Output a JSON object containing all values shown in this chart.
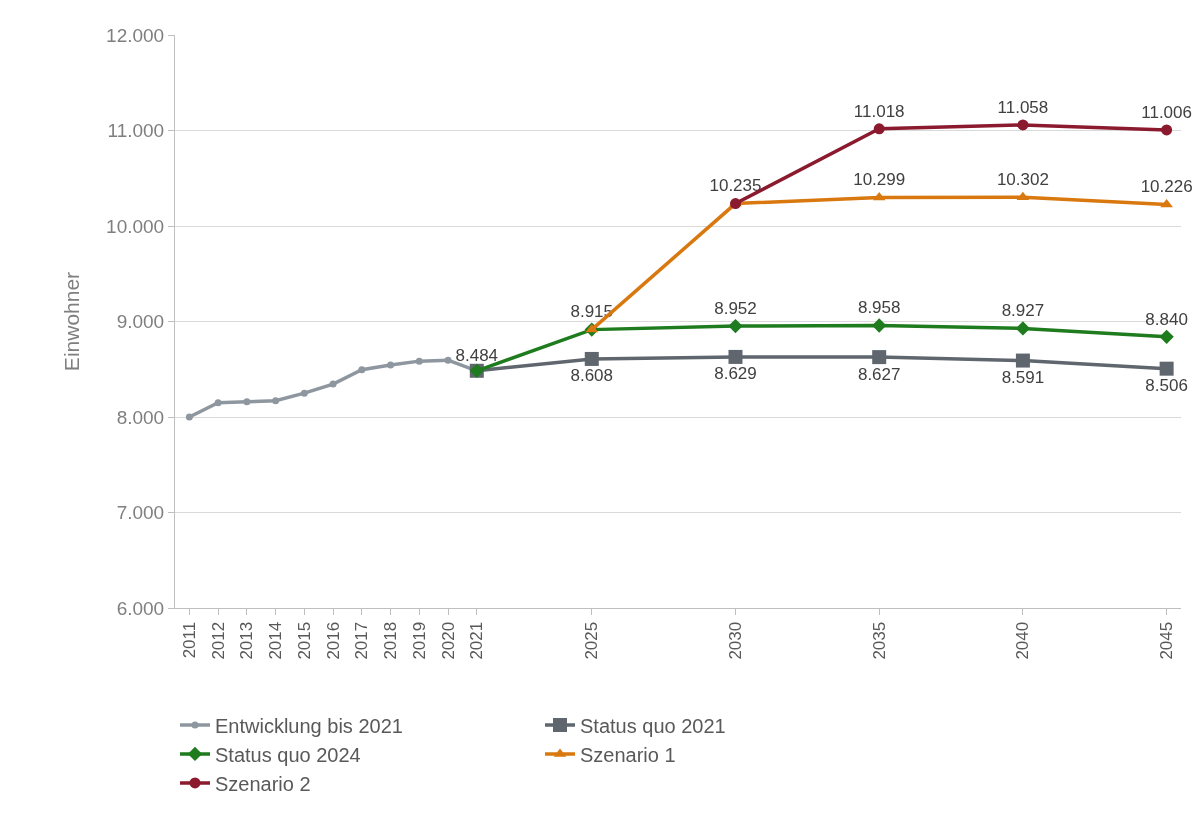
{
  "chart_data": {
    "type": "line",
    "ylabel": "Einwohner",
    "xlim": [
      2010.5,
      2045.5
    ],
    "xticks": [
      2011,
      2012,
      2013,
      2014,
      2015,
      2016,
      2017,
      2018,
      2019,
      2020,
      2021,
      2025,
      2030,
      2035,
      2040,
      2045
    ],
    "ylim": [
      6000,
      12000
    ],
    "yticks": [
      {
        "value": 6000,
        "label": "6.000"
      },
      {
        "value": 7000,
        "label": "7.000"
      },
      {
        "value": 8000,
        "label": "8.000"
      },
      {
        "value": 9000,
        "label": "9.000"
      },
      {
        "value": 10000,
        "label": "10.000"
      },
      {
        "value": 11000,
        "label": "11.000"
      },
      {
        "value": 12000,
        "label": "12.000"
      }
    ],
    "grid": "y",
    "legend": "bottom",
    "series": [
      {
        "name": "Entwicklung bis 2021",
        "color": "#8e979f",
        "marker": "circle",
        "x": [
          2011,
          2012,
          2013,
          2014,
          2015,
          2016,
          2017,
          2018,
          2019,
          2020,
          2021
        ],
        "values": [
          8000,
          8150,
          8160,
          8170,
          8250,
          8345,
          8495,
          8545,
          8585,
          8595,
          8484
        ],
        "value_labels": [
          null,
          null,
          null,
          null,
          null,
          null,
          null,
          null,
          null,
          null,
          "8.484"
        ]
      },
      {
        "name": "Status quo 2021",
        "color": "#5f666d",
        "marker": "square",
        "x": [
          2021,
          2025,
          2030,
          2035,
          2040,
          2045
        ],
        "values": [
          8484,
          8608,
          8629,
          8627,
          8591,
          8506
        ],
        "value_labels": [
          null,
          "8.608",
          "8.629",
          "8.627",
          "8.591",
          "8.506"
        ]
      },
      {
        "name": "Status quo 2024",
        "color": "#1e7b1e",
        "marker": "diamond",
        "x": [
          2021,
          2025,
          2030,
          2035,
          2040,
          2045
        ],
        "values": [
          8484,
          8915,
          8952,
          8958,
          8927,
          8840
        ],
        "value_labels": [
          null,
          "8.915",
          "8.952",
          "8.958",
          "8.927",
          "8.840"
        ]
      },
      {
        "name": "Szenario 1",
        "color": "#d9780f",
        "marker": "triangle",
        "x": [
          2025,
          2030,
          2035,
          2040,
          2045
        ],
        "values": [
          8915,
          10235,
          10299,
          10302,
          10226
        ],
        "value_labels": [
          null,
          "10.235",
          "10.299",
          "10.302",
          "10.226"
        ]
      },
      {
        "name": "Szenario 2",
        "color": "#8b1a2f",
        "marker": "circle",
        "x": [
          2030,
          2035,
          2040,
          2045
        ],
        "values": [
          10235,
          11018,
          11058,
          11006
        ],
        "value_labels": [
          null,
          "11.018",
          "11.058",
          "11.006"
        ]
      }
    ]
  }
}
